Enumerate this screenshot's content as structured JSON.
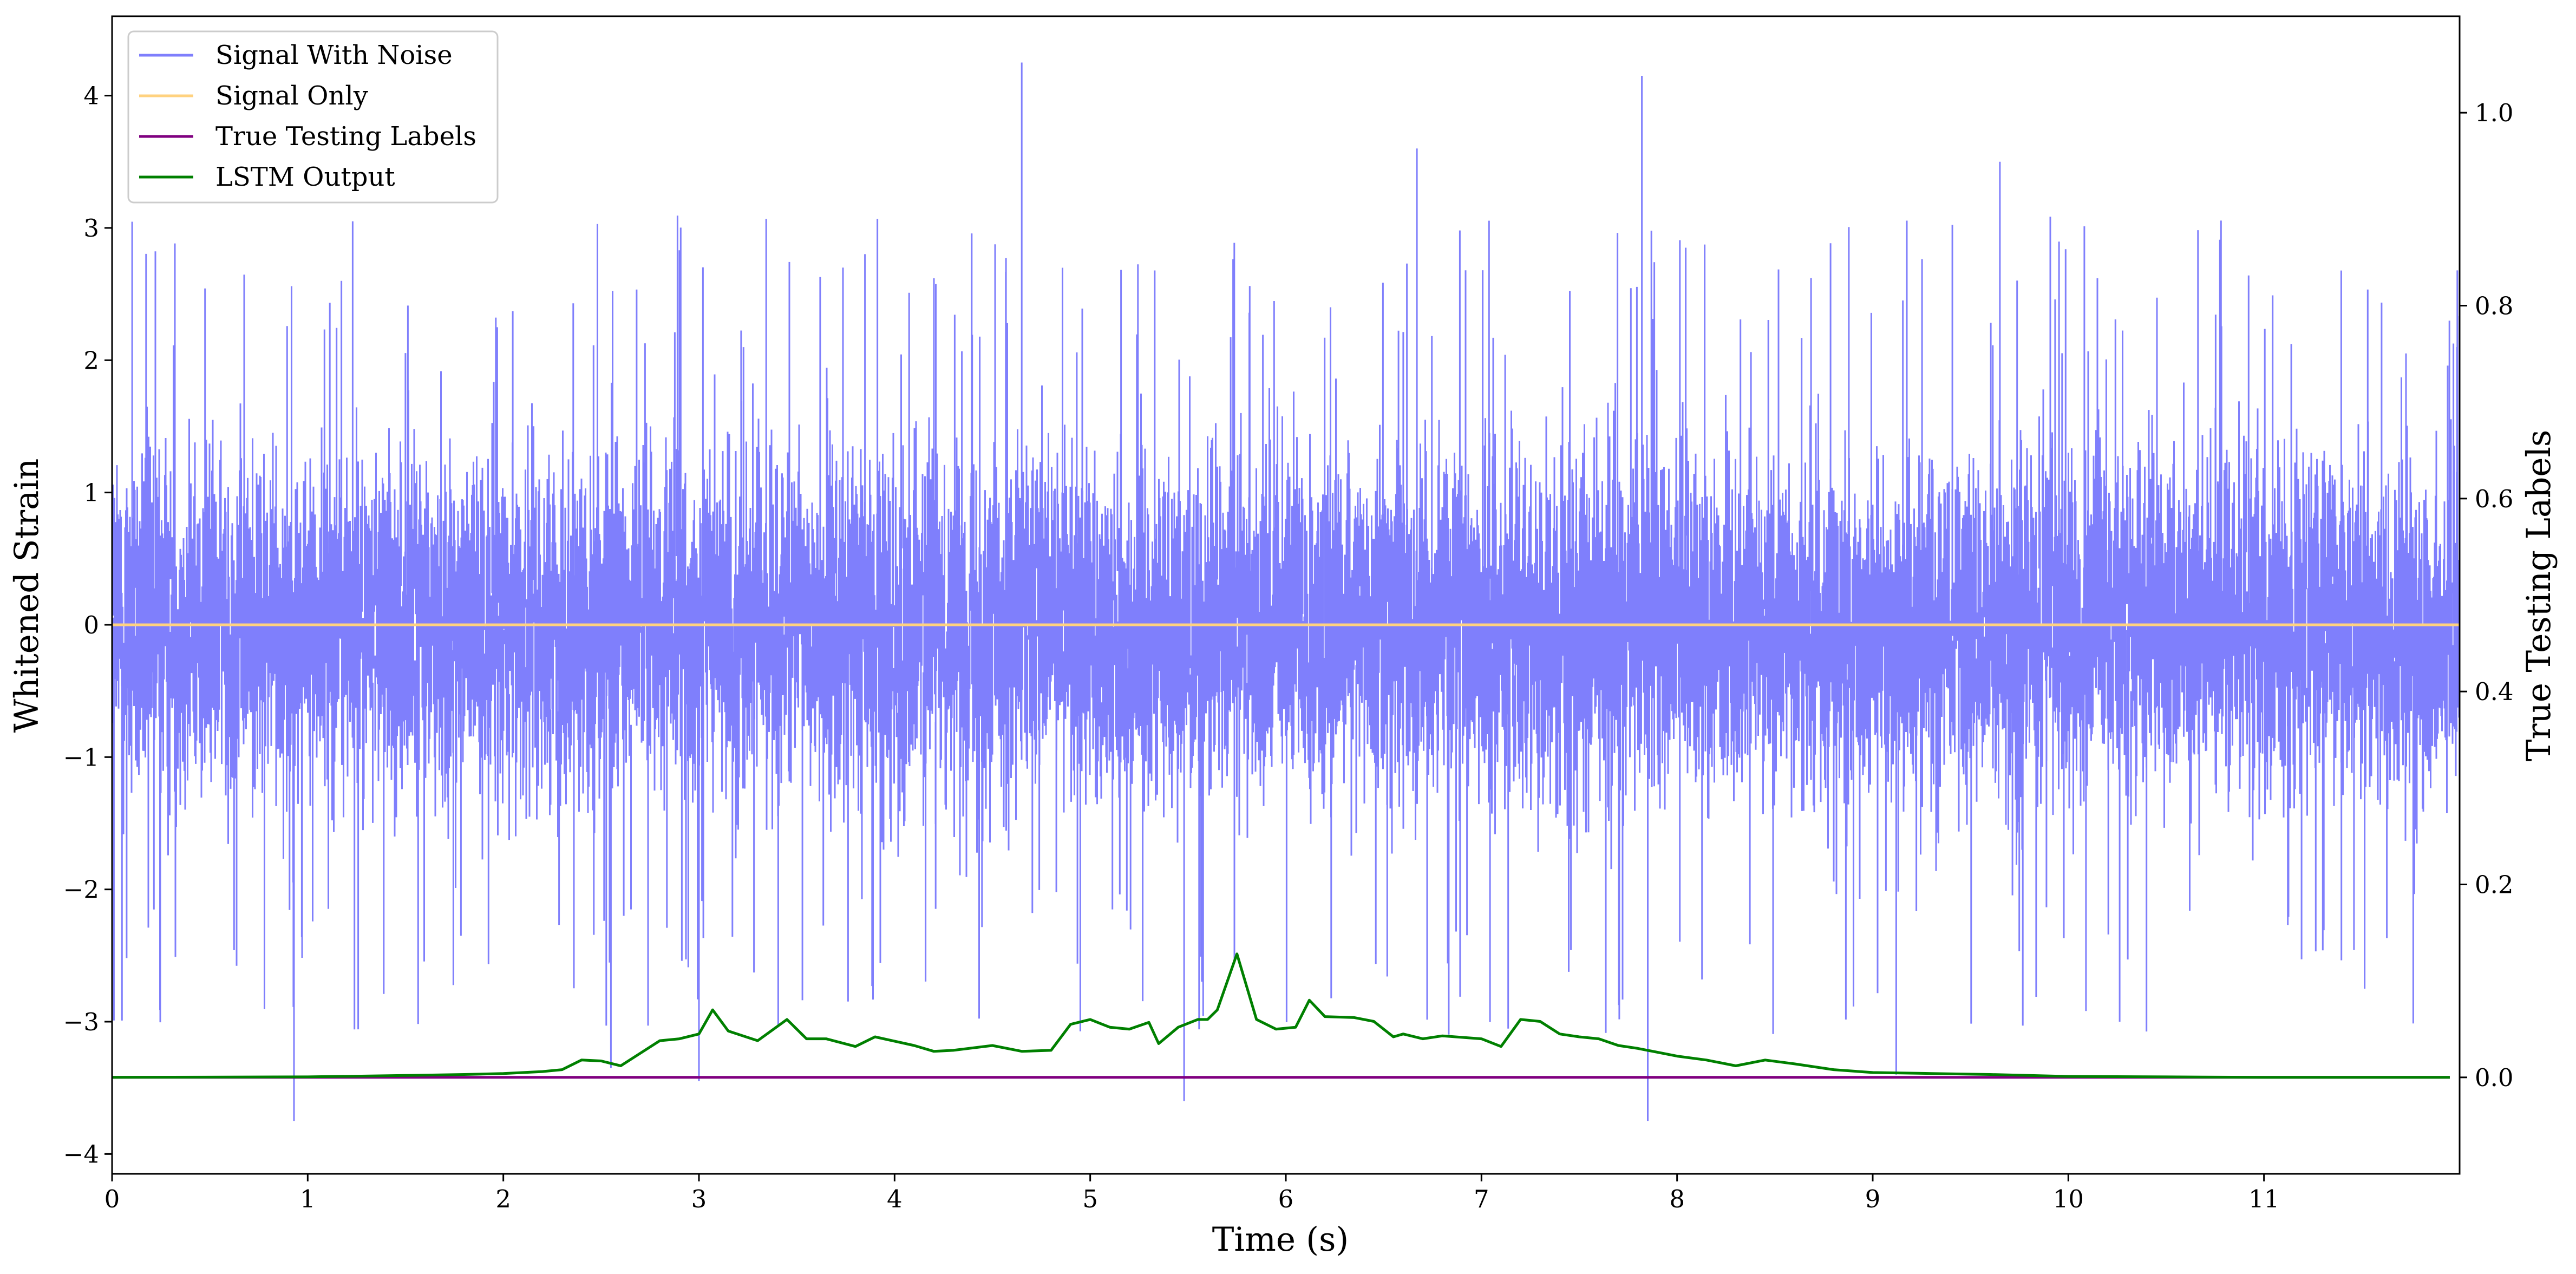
{
  "chart_data": {
    "type": "line",
    "xlabel": "Time (s)",
    "ylabel": "Whitened Strain",
    "ylabel_right": "True Testing Labels",
    "xlim": [
      0,
      12
    ],
    "ylim": [
      -4.15,
      4.6
    ],
    "ylim_right": [
      -0.1,
      1.1
    ],
    "x_ticks": [
      "0",
      "1",
      "2",
      "3",
      "4",
      "5",
      "6",
      "7",
      "8",
      "9",
      "10",
      "11"
    ],
    "y_ticks": [
      "−4",
      "−3",
      "−2",
      "−1",
      "0",
      "1",
      "2",
      "3",
      "4"
    ],
    "y_ticks_right": [
      "0.0",
      "0.2",
      "0.4",
      "0.6",
      "0.8",
      "1.0"
    ],
    "grid": false,
    "legend_position": "top-left",
    "legend": [
      "Signal With Noise",
      "Signal Only",
      "True Testing Labels",
      "LSTM Output"
    ],
    "colors": {
      "signal_with_noise": "#7f7ffc",
      "signal_only": "#ffd27f",
      "true_labels": "#800080",
      "lstm_output": "#008000"
    },
    "series": [
      {
        "name": "Signal With Noise",
        "axis": "left",
        "description_values": "dense noise, mostly within [-2, 2]",
        "spikes": [
          {
            "x": 0.93,
            "y": -3.75
          },
          {
            "x": 1.23,
            "y": 3.05
          },
          {
            "x": 2.55,
            "y": -3.35
          },
          {
            "x": 3.0,
            "y": -3.45
          },
          {
            "x": 4.65,
            "y": 4.25
          },
          {
            "x": 5.48,
            "y": -3.6
          },
          {
            "x": 6.67,
            "y": 3.6
          },
          {
            "x": 7.82,
            "y": 4.15
          },
          {
            "x": 7.85,
            "y": -3.75
          },
          {
            "x": 9.12,
            "y": -3.4
          },
          {
            "x": 9.65,
            "y": 3.5
          }
        ]
      },
      {
        "name": "Signal Only",
        "axis": "left",
        "x": [
          0,
          12
        ],
        "values": [
          0,
          0
        ]
      },
      {
        "name": "True Testing Labels",
        "axis": "right",
        "x": [
          0,
          11.95
        ],
        "values": [
          0,
          0
        ]
      },
      {
        "name": "LSTM Output",
        "axis": "right",
        "x": [
          0,
          1.0,
          1.5,
          1.8,
          2.0,
          2.2,
          2.3,
          2.4,
          2.5,
          2.6,
          2.7,
          2.8,
          2.9,
          3.0,
          3.07,
          3.15,
          3.3,
          3.45,
          3.55,
          3.65,
          3.8,
          3.9,
          4.1,
          4.2,
          4.3,
          4.5,
          4.65,
          4.8,
          4.9,
          5.0,
          5.1,
          5.2,
          5.3,
          5.35,
          5.45,
          5.55,
          5.6,
          5.65,
          5.75,
          5.85,
          5.95,
          6.05,
          6.12,
          6.2,
          6.35,
          6.45,
          6.55,
          6.6,
          6.7,
          6.8,
          7.0,
          7.1,
          7.2,
          7.3,
          7.4,
          7.5,
          7.6,
          7.7,
          7.8,
          8.0,
          8.15,
          8.3,
          8.45,
          8.6,
          8.8,
          9.0,
          9.3,
          9.6,
          10.0,
          10.5,
          11.0,
          11.95
        ],
        "values": [
          0.0,
          0.0005,
          0.002,
          0.003,
          0.004,
          0.006,
          0.008,
          0.018,
          0.017,
          0.012,
          0.025,
          0.038,
          0.04,
          0.045,
          0.07,
          0.048,
          0.038,
          0.06,
          0.04,
          0.04,
          0.032,
          0.042,
          0.033,
          0.027,
          0.028,
          0.033,
          0.027,
          0.028,
          0.055,
          0.06,
          0.052,
          0.05,
          0.057,
          0.035,
          0.052,
          0.06,
          0.06,
          0.07,
          0.128,
          0.06,
          0.05,
          0.052,
          0.08,
          0.063,
          0.062,
          0.058,
          0.042,
          0.045,
          0.04,
          0.043,
          0.04,
          0.032,
          0.06,
          0.058,
          0.045,
          0.042,
          0.04,
          0.033,
          0.03,
          0.022,
          0.018,
          0.012,
          0.018,
          0.014,
          0.008,
          0.005,
          0.004,
          0.003,
          0.001,
          0.0005,
          0.0,
          0.0
        ]
      }
    ]
  }
}
